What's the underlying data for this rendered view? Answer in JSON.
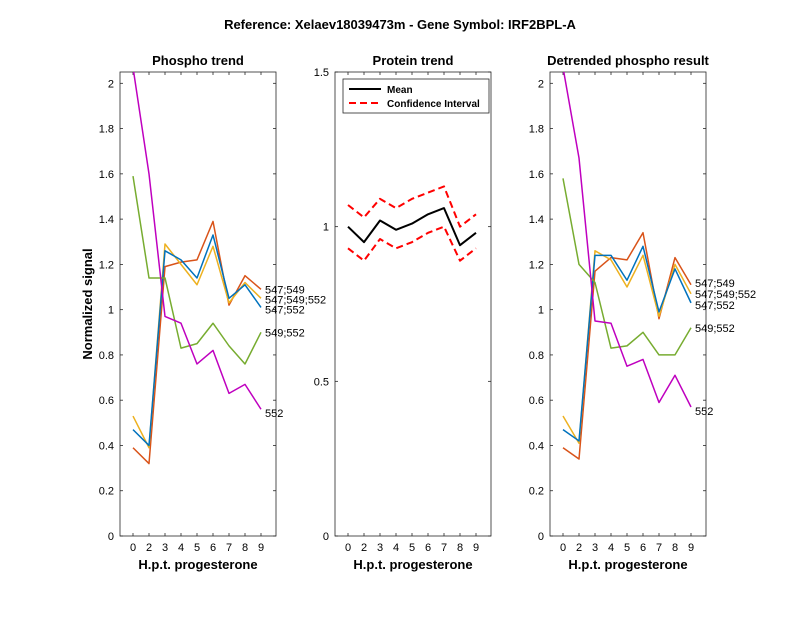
{
  "figure": {
    "title": "Reference:  Xelaev18039473m - Gene Symbol:  IRF2BPL-A"
  },
  "chart_data": [
    {
      "type": "line",
      "title": "Phospho trend",
      "xlabel": "H.p.t. progesterone",
      "ylabel": "Normalized signal",
      "categories": [
        "0",
        "2",
        "3",
        "4",
        "5",
        "6",
        "7",
        "8",
        "9"
      ],
      "ylim": [
        0,
        2.05
      ],
      "yticks": [
        0,
        0.2,
        0.4,
        0.6,
        0.8,
        1,
        1.2,
        1.4,
        1.6,
        1.8,
        2
      ],
      "grid": false,
      "series": [
        {
          "name": "547;549",
          "color": "#d95319",
          "values": [
            0.39,
            0.32,
            1.19,
            1.21,
            1.22,
            1.39,
            1.02,
            1.15,
            1.09
          ]
        },
        {
          "name": "547;549;552",
          "color": "#edb120",
          "values": [
            0.53,
            0.39,
            1.29,
            1.2,
            1.11,
            1.28,
            1.03,
            1.12,
            1.05
          ]
        },
        {
          "name": "547;552",
          "color": "#0072bd",
          "values": [
            0.47,
            0.4,
            1.26,
            1.22,
            1.14,
            1.33,
            1.05,
            1.11,
            1.01
          ]
        },
        {
          "name": "549;552",
          "color": "#77ac30",
          "values": [
            1.59,
            1.14,
            1.14,
            0.83,
            0.85,
            0.94,
            0.84,
            0.76,
            0.9
          ]
        },
        {
          "name": "552",
          "color": "#bf00bf",
          "values": [
            2.07,
            1.6,
            0.97,
            0.94,
            0.76,
            0.82,
            0.63,
            0.67,
            0.56
          ]
        }
      ]
    },
    {
      "type": "line",
      "title": "Protein trend",
      "xlabel": "H.p.t. progesterone",
      "ylabel": "",
      "categories": [
        "0",
        "2",
        "3",
        "4",
        "5",
        "6",
        "7",
        "8",
        "9"
      ],
      "ylim": [
        0,
        1.5
      ],
      "yticks": [
        0,
        0.5,
        1,
        1.5
      ],
      "grid": false,
      "legend": {
        "position": "top-left",
        "entries": [
          "Mean",
          "Confidence Interval"
        ]
      },
      "series": [
        {
          "name": "Mean",
          "color": "#000000",
          "style": "solid",
          "values": [
            1.0,
            0.95,
            1.02,
            0.99,
            1.01,
            1.04,
            1.06,
            0.94,
            0.98
          ]
        },
        {
          "name": "Confidence Interval",
          "color": "#ff0000",
          "style": "dashed",
          "values": [
            1.07,
            1.03,
            1.09,
            1.06,
            1.09,
            1.11,
            1.13,
            1.0,
            1.04
          ]
        },
        {
          "name": "Confidence Interval",
          "color": "#ff0000",
          "style": "dashed",
          "values": [
            0.93,
            0.89,
            0.96,
            0.93,
            0.95,
            0.98,
            1.0,
            0.89,
            0.93
          ]
        }
      ]
    },
    {
      "type": "line",
      "title": "Detrended phospho result",
      "xlabel": "H.p.t. progesterone",
      "ylabel": "",
      "categories": [
        "0",
        "2",
        "3",
        "4",
        "5",
        "6",
        "7",
        "8",
        "9"
      ],
      "ylim": [
        0,
        2.05
      ],
      "yticks": [
        0,
        0.2,
        0.4,
        0.6,
        0.8,
        1,
        1.2,
        1.4,
        1.6,
        1.8,
        2
      ],
      "grid": false,
      "series": [
        {
          "name": "547;549",
          "color": "#d95319",
          "values": [
            0.39,
            0.34,
            1.17,
            1.23,
            1.22,
            1.34,
            0.96,
            1.23,
            1.11
          ]
        },
        {
          "name": "547;549;552",
          "color": "#edb120",
          "values": [
            0.53,
            0.41,
            1.26,
            1.22,
            1.1,
            1.24,
            0.97,
            1.2,
            1.07
          ]
        },
        {
          "name": "547;552",
          "color": "#0072bd",
          "values": [
            0.47,
            0.42,
            1.24,
            1.24,
            1.13,
            1.28,
            0.99,
            1.18,
            1.03
          ]
        },
        {
          "name": "549;552",
          "color": "#77ac30",
          "values": [
            1.58,
            1.2,
            1.12,
            0.83,
            0.84,
            0.9,
            0.8,
            0.8,
            0.92
          ]
        },
        {
          "name": "552",
          "color": "#bf00bf",
          "values": [
            2.07,
            1.67,
            0.95,
            0.94,
            0.75,
            0.78,
            0.59,
            0.71,
            0.57
          ]
        }
      ]
    }
  ]
}
